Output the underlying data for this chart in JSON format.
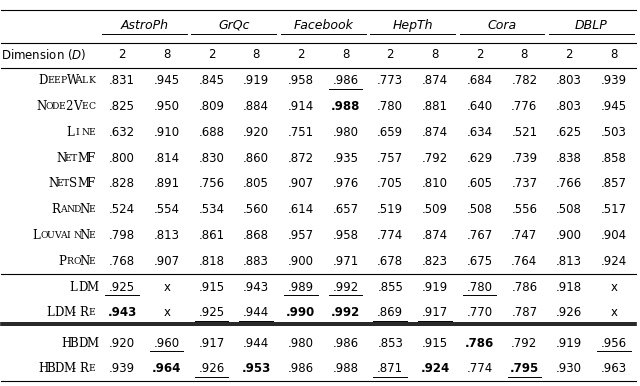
{
  "datasets": [
    "AstroPh",
    "GrQc",
    "Facebook",
    "HepTh",
    "Cora",
    "DBLP"
  ],
  "methods": [
    "DeepWalk",
    "Node2Vec",
    "LINE",
    "NetMF",
    "NetSMF",
    "RandNE",
    "LouvainNE",
    "ProNE",
    "LDM",
    "LDM-Re",
    "HBDM",
    "HBDM-Re"
  ],
  "method_labels": [
    "DeepWalk",
    "Node2Vec",
    "Line",
    "NetMF",
    "NetSMF",
    "RandNe",
    "LouvainNe",
    "ProNe",
    "LDM",
    "LDM-Re",
    "HBDM",
    "HBDM-Re"
  ],
  "data": {
    "DeepWalk": [
      ".831",
      ".945",
      ".845",
      ".919",
      ".958",
      ".986",
      ".773",
      ".874",
      ".684",
      ".782",
      ".803",
      ".939"
    ],
    "Node2Vec": [
      ".825",
      ".950",
      ".809",
      ".884",
      ".914",
      ".988",
      ".780",
      ".881",
      ".640",
      ".776",
      ".803",
      ".945"
    ],
    "LINE": [
      ".632",
      ".910",
      ".688",
      ".920",
      ".751",
      ".980",
      ".659",
      ".874",
      ".634",
      ".521",
      ".625",
      ".503"
    ],
    "NetMF": [
      ".800",
      ".814",
      ".830",
      ".860",
      ".872",
      ".935",
      ".757",
      ".792",
      ".629",
      ".739",
      ".838",
      ".858"
    ],
    "NetSMF": [
      ".828",
      ".891",
      ".756",
      ".805",
      ".907",
      ".976",
      ".705",
      ".810",
      ".605",
      ".737",
      ".766",
      ".857"
    ],
    "RandNE": [
      ".524",
      ".554",
      ".534",
      ".560",
      ".614",
      ".657",
      ".519",
      ".509",
      ".508",
      ".556",
      ".508",
      ".517"
    ],
    "LouvainNE": [
      ".798",
      ".813",
      ".861",
      ".868",
      ".957",
      ".958",
      ".774",
      ".874",
      ".767",
      ".747",
      ".900",
      ".904"
    ],
    "ProNE": [
      ".768",
      ".907",
      ".818",
      ".883",
      ".900",
      ".971",
      ".678",
      ".823",
      ".675",
      ".764",
      ".813",
      ".924"
    ],
    "LDM": [
      ".925",
      "x",
      ".915",
      ".943",
      ".989",
      ".992",
      ".855",
      ".919",
      ".780",
      ".786",
      ".918",
      "x"
    ],
    "LDM-Re": [
      ".943",
      "x",
      ".925",
      ".944",
      ".990",
      ".992",
      ".869",
      ".917",
      ".770",
      ".787",
      ".926",
      "x"
    ],
    "HBDM": [
      ".920",
      ".960",
      ".917",
      ".944",
      ".980",
      ".986",
      ".853",
      ".915",
      ".786",
      ".792",
      ".919",
      ".956"
    ],
    "HBDM-Re": [
      ".939",
      ".964",
      ".926",
      ".953",
      ".986",
      ".988",
      ".871",
      ".924",
      ".774",
      ".795",
      ".930",
      ".963"
    ]
  },
  "underlined": {
    "DeepWalk": [
      false,
      false,
      false,
      false,
      false,
      true,
      false,
      false,
      false,
      false,
      false,
      false
    ],
    "Node2Vec": [
      false,
      false,
      false,
      false,
      false,
      false,
      false,
      false,
      false,
      false,
      false,
      false
    ],
    "LINE": [
      false,
      false,
      false,
      false,
      false,
      false,
      false,
      false,
      false,
      false,
      false,
      false
    ],
    "NetMF": [
      false,
      false,
      false,
      false,
      false,
      false,
      false,
      false,
      false,
      false,
      false,
      false
    ],
    "NetSMF": [
      false,
      false,
      false,
      false,
      false,
      false,
      false,
      false,
      false,
      false,
      false,
      false
    ],
    "RandNE": [
      false,
      false,
      false,
      false,
      false,
      false,
      false,
      false,
      false,
      false,
      false,
      false
    ],
    "LouvainNE": [
      false,
      false,
      false,
      false,
      false,
      false,
      false,
      false,
      false,
      false,
      false,
      false
    ],
    "ProNE": [
      false,
      false,
      false,
      false,
      false,
      false,
      false,
      false,
      false,
      false,
      false,
      false
    ],
    "LDM": [
      true,
      false,
      false,
      false,
      true,
      true,
      false,
      false,
      true,
      false,
      false,
      false
    ],
    "LDM-Re": [
      false,
      false,
      true,
      true,
      false,
      false,
      true,
      true,
      false,
      false,
      false,
      false
    ],
    "HBDM": [
      false,
      true,
      false,
      false,
      false,
      false,
      false,
      false,
      false,
      false,
      false,
      true
    ],
    "HBDM-Re": [
      false,
      false,
      true,
      false,
      false,
      false,
      true,
      false,
      false,
      true,
      false,
      false
    ]
  },
  "bold": {
    "DeepWalk": [
      false,
      false,
      false,
      false,
      false,
      false,
      false,
      false,
      false,
      false,
      false,
      false
    ],
    "Node2Vec": [
      false,
      false,
      false,
      false,
      false,
      true,
      false,
      false,
      false,
      false,
      false,
      false
    ],
    "LINE": [
      false,
      false,
      false,
      false,
      false,
      false,
      false,
      false,
      false,
      false,
      false,
      false
    ],
    "NetMF": [
      false,
      false,
      false,
      false,
      false,
      false,
      false,
      false,
      false,
      false,
      false,
      false
    ],
    "NetSMF": [
      false,
      false,
      false,
      false,
      false,
      false,
      false,
      false,
      false,
      false,
      false,
      false
    ],
    "RandNE": [
      false,
      false,
      false,
      false,
      false,
      false,
      false,
      false,
      false,
      false,
      false,
      false
    ],
    "LouvainNE": [
      false,
      false,
      false,
      false,
      false,
      false,
      false,
      false,
      false,
      false,
      false,
      false
    ],
    "ProNE": [
      false,
      false,
      false,
      false,
      false,
      false,
      false,
      false,
      false,
      false,
      false,
      false
    ],
    "LDM": [
      false,
      false,
      false,
      false,
      false,
      false,
      false,
      false,
      false,
      false,
      false,
      false
    ],
    "LDM-Re": [
      true,
      false,
      false,
      false,
      true,
      true,
      false,
      false,
      false,
      false,
      false,
      false
    ],
    "HBDM": [
      false,
      false,
      false,
      false,
      false,
      false,
      false,
      false,
      true,
      false,
      false,
      false
    ],
    "HBDM-Re": [
      false,
      true,
      false,
      true,
      false,
      false,
      false,
      true,
      false,
      true,
      false,
      false
    ]
  },
  "figsize": [
    6.4,
    3.86
  ],
  "dpi": 100
}
